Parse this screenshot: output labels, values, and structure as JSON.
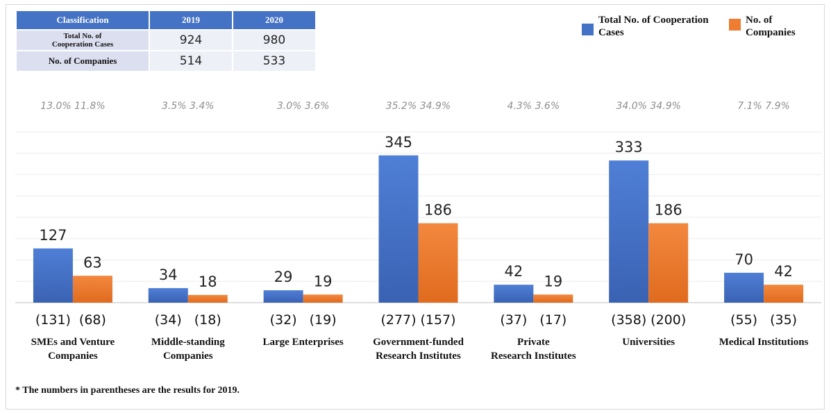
{
  "table": {
    "headers": [
      "Classification",
      "2019",
      "2020"
    ],
    "rows": [
      {
        "label": "Total No. of Cooperation Cases",
        "v2019": "924",
        "v2020": "980"
      },
      {
        "label": "No. of Companies",
        "v2019": "514",
        "v2020": "533"
      }
    ]
  },
  "legend": {
    "items": [
      {
        "label": "Total No. of Cooperation Cases",
        "color": "#4472c4"
      },
      {
        "label": "No. of Companies",
        "color": "#ed7d31"
      }
    ]
  },
  "footnote": "* The numbers in parentheses are the results for 2019.",
  "chart_data": {
    "type": "bar",
    "categories": [
      "SMEs and Venture Companies",
      "Middle-standing Companies",
      "Large Enterprises",
      "Government-funded Research Institutes",
      "Private Research Institutes",
      "Universities",
      "Medical Institutions"
    ],
    "series": [
      {
        "name": "Total No. of Cooperation Cases",
        "color": "#4472c4",
        "values": [
          127,
          34,
          29,
          345,
          42,
          333,
          70
        ]
      },
      {
        "name": "No. of Companies",
        "color": "#ed7d31",
        "values": [
          63,
          18,
          19,
          186,
          19,
          186,
          42
        ]
      }
    ],
    "percent_labels": [
      [
        "13.0%",
        "11.8%"
      ],
      [
        "3.5%",
        "3.4%"
      ],
      [
        "3.0%",
        "3.6%"
      ],
      [
        "35.2%",
        "34.9%"
      ],
      [
        "4.3%",
        "3.6%"
      ],
      [
        "34.0%",
        "34.9%"
      ],
      [
        "7.1%",
        "7.9%"
      ]
    ],
    "previous_year_labels": [
      [
        "(131)",
        "(68)"
      ],
      [
        "(34)",
        "(18)"
      ],
      [
        "(32)",
        "(19)"
      ],
      [
        "(277)",
        "(157)"
      ],
      [
        "(37)",
        "(17)"
      ],
      [
        "(358)",
        "(200)"
      ],
      [
        "(55)",
        "(35)"
      ]
    ],
    "ylim": [
      0,
      400
    ],
    "grid": true
  }
}
